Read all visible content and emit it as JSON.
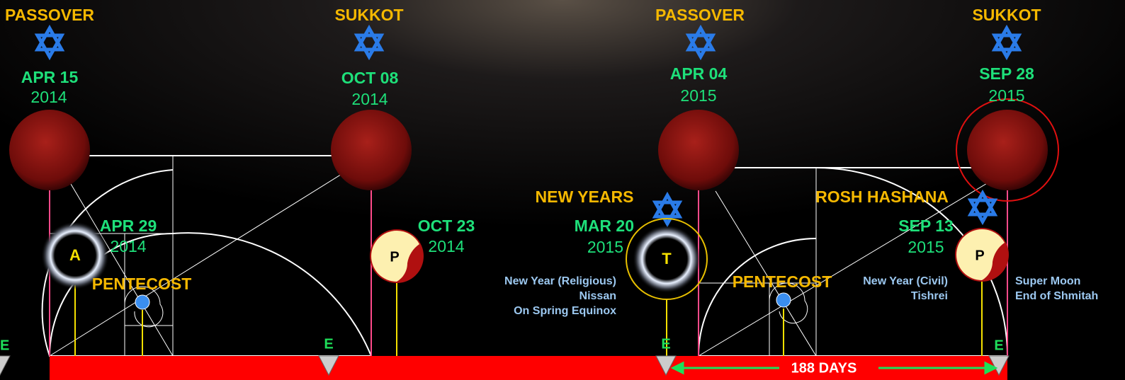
{
  "blood_moons": [
    {
      "feast": "PASSOVER",
      "date": "APR 15",
      "year": "2014"
    },
    {
      "feast": "SUKKOT",
      "date": "OCT 08",
      "year": "2014"
    },
    {
      "feast": "PASSOVER",
      "date": "APR 04",
      "year": "2015"
    },
    {
      "feast": "SUKKOT",
      "date": "SEP 28",
      "year": "2015"
    }
  ],
  "eclipses": [
    {
      "letter": "A",
      "date": "APR 29",
      "year": "2014"
    },
    {
      "letter": "P",
      "date": "OCT 23",
      "year": "2014"
    },
    {
      "letter": "T",
      "date": "MAR 20",
      "year": "2015",
      "holiday": "NEW YEARS"
    },
    {
      "letter": "P",
      "date": "SEP 13",
      "year": "2015",
      "holiday": "ROSH HASHANA"
    }
  ],
  "pentecost": [
    "PENTECOST",
    "PENTECOST"
  ],
  "notes": [
    [
      "New Year (Religious)",
      "Nissan",
      "On Spring Equinox"
    ],
    [
      "New Year (Civil)",
      "Tishrei"
    ],
    [
      "Super Moon",
      "End of Shmitah"
    ]
  ],
  "markers": [
    "E",
    "E",
    "E",
    "E"
  ],
  "span": "188 DAYS"
}
